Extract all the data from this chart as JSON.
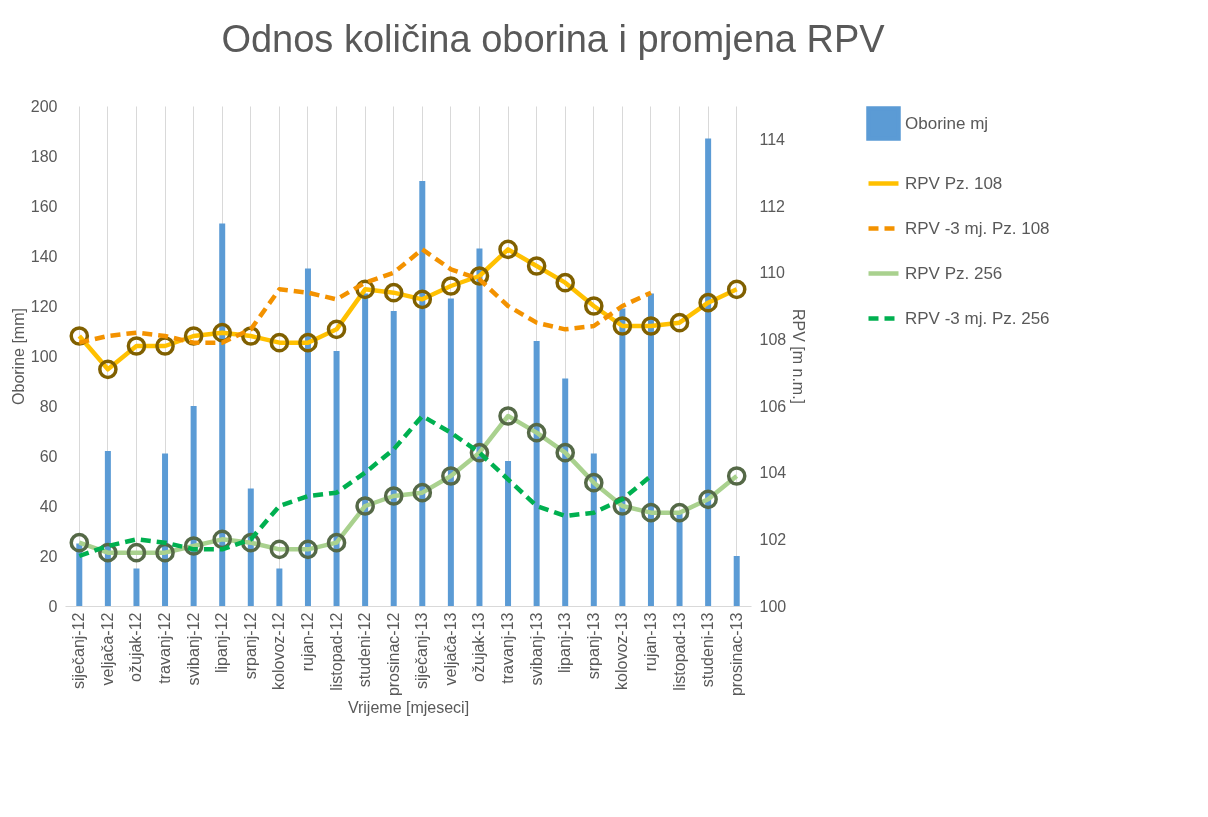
{
  "chart_data": {
    "type": "bar",
    "title": "Odnos količina oborina i promjena RPV",
    "xlabel": "Vrijeme [mjeseci]",
    "ylabel": "Oborine [mm]",
    "y2label": "RPV [m n.m.]",
    "categories": [
      "siječanj-12",
      "veljača-12",
      "ožujak-12",
      "travanj-12",
      "svibanj-12",
      "lipanj-12",
      "srpanj-12",
      "kolovoz-12",
      "rujan-12",
      "listopad-12",
      "studeni-12",
      "prosinac-12",
      "siječanj-13",
      "veljača-13",
      "ožujak-13",
      "travanj-13",
      "svibanj-13",
      "lipanj-13",
      "srpanj-13",
      "kolovoz-13",
      "rujan-13",
      "listopad-13",
      "studeni-13",
      "prosinac-13"
    ],
    "ylim": [
      0,
      200
    ],
    "yticks": [
      0,
      20,
      40,
      60,
      80,
      100,
      120,
      140,
      160,
      180,
      200
    ],
    "y2lim": [
      100,
      115
    ],
    "y2ticks": [
      100,
      102,
      104,
      106,
      108,
      110,
      112,
      114
    ],
    "grid": "x",
    "legend": "right",
    "series": [
      {
        "name": "Oborine mj",
        "color": "#5b9bd5",
        "values": [
          25,
          62,
          15,
          61,
          80,
          153,
          47,
          15,
          135,
          102,
          125,
          118,
          170,
          123,
          143,
          58,
          106,
          91,
          61,
          119,
          125,
          37,
          187,
          20
        ]
      },
      {
        "name": "RPV Pz. 108",
        "type": "line",
        "axis": "y2",
        "color": "#ffc000",
        "marker": "circle",
        "line_style": "solid",
        "values": [
          108.1,
          107.1,
          107.8,
          107.8,
          108.1,
          108.2,
          108.1,
          107.9,
          107.9,
          108.3,
          109.5,
          109.4,
          109.2,
          109.6,
          109.9,
          110.7,
          110.2,
          109.7,
          109.0,
          108.4,
          108.4,
          108.5,
          109.1,
          109.5
        ]
      },
      {
        "name": "RPV -3 mj. Pz. 108",
        "type": "line",
        "axis": "y2",
        "color": "#f39200",
        "marker": "none",
        "line_style": "dashed",
        "values": [
          107.9,
          108.1,
          108.2,
          108.1,
          107.9,
          107.9,
          108.3,
          109.5,
          109.4,
          109.2,
          109.7,
          110.0,
          110.7,
          110.1,
          109.8,
          109.0,
          108.5,
          108.3,
          108.4,
          109.0,
          109.4,
          null,
          null,
          null
        ]
      },
      {
        "name": "RPV Pz. 256",
        "type": "line",
        "axis": "y2",
        "color": "#a9d18e",
        "marker": "circle",
        "line_style": "solid",
        "values": [
          101.9,
          101.6,
          101.6,
          101.6,
          101.8,
          102.0,
          101.9,
          101.7,
          101.7,
          101.9,
          103.0,
          103.3,
          103.4,
          103.9,
          104.6,
          105.7,
          105.2,
          104.6,
          103.7,
          103.0,
          102.8,
          102.8,
          103.2,
          103.9
        ]
      },
      {
        "name": "RPV -3 mj. Pz. 256",
        "type": "line",
        "axis": "y2",
        "color": "#00b050",
        "marker": "none",
        "line_style": "dashed",
        "values": [
          101.5,
          101.8,
          102.0,
          101.9,
          101.7,
          101.7,
          102.0,
          103.0,
          103.3,
          103.4,
          104.0,
          104.7,
          105.7,
          105.2,
          104.6,
          103.8,
          103.0,
          102.7,
          102.8,
          103.2,
          103.9,
          null,
          null,
          null
        ]
      }
    ]
  }
}
